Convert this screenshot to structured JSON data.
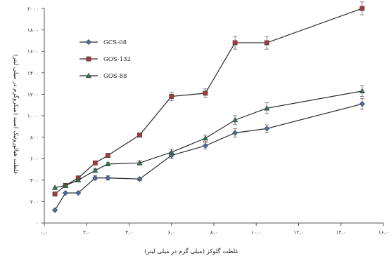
{
  "chart_data": {
    "type": "line",
    "title": "",
    "xlabel": "غلظت گلوکز (میلی گرم در میلی لیتر)",
    "ylabel": "غلظت هیالورونیک اسید (میکروگرم در میلی لیتر)",
    "xlim": [
      0,
      16
    ],
    "ylim": [
      0,
      2000
    ],
    "x_ticks": [
      0,
      2,
      4,
      6,
      8,
      10,
      12,
      14,
      16
    ],
    "x_tick_labels": [
      "۰،۰",
      "۲،۰",
      "۴،۰",
      "۶،۰",
      "۸،۰",
      "۱۰،۰",
      "۱۲،۰",
      "۱۴،۰",
      "۱۶،۰"
    ],
    "y_ticks": [
      0,
      200,
      400,
      600,
      800,
      1000,
      1200,
      1400,
      1600,
      1800,
      2000
    ],
    "y_tick_labels": [
      "۰",
      "۲۰۰",
      "۴۰۰",
      "۶۰۰",
      "۸۰۰",
      "۱۰۰۰",
      "۱۲۰۰",
      "۱۴۰۰",
      "۱۶۰۰",
      "۱۸۰۰",
      "۲۰۰۰"
    ],
    "grid": false,
    "legend_position": "top-left",
    "x": [
      0.5,
      1.0,
      1.6,
      2.4,
      3.0,
      4.5,
      6.0,
      7.6,
      9.0,
      10.5,
      15.0
    ],
    "series": [
      {
        "name": "GCS-08",
        "color": "#4a6fb0",
        "marker": "diamond",
        "values": [
          120,
          280,
          280,
          420,
          420,
          410,
          630,
          720,
          840,
          880,
          1110
        ],
        "errors": [
          0,
          0,
          0,
          20,
          20,
          15,
          30,
          30,
          40,
          35,
          50
        ]
      },
      {
        "name": "GOS-132",
        "color": "#a83a3a",
        "marker": "square",
        "values": [
          270,
          350,
          420,
          560,
          630,
          820,
          1180,
          1210,
          1680,
          1680,
          2000
        ],
        "errors": [
          0,
          0,
          0,
          15,
          15,
          20,
          40,
          40,
          60,
          60,
          60
        ]
      },
      {
        "name": "GOS-88",
        "color": "#2f7a4c",
        "marker": "triangle",
        "values": [
          330,
          350,
          400,
          490,
          550,
          560,
          660,
          790,
          960,
          1070,
          1230
        ],
        "errors": [
          0,
          0,
          0,
          15,
          15,
          20,
          30,
          30,
          40,
          50,
          50
        ]
      }
    ]
  }
}
